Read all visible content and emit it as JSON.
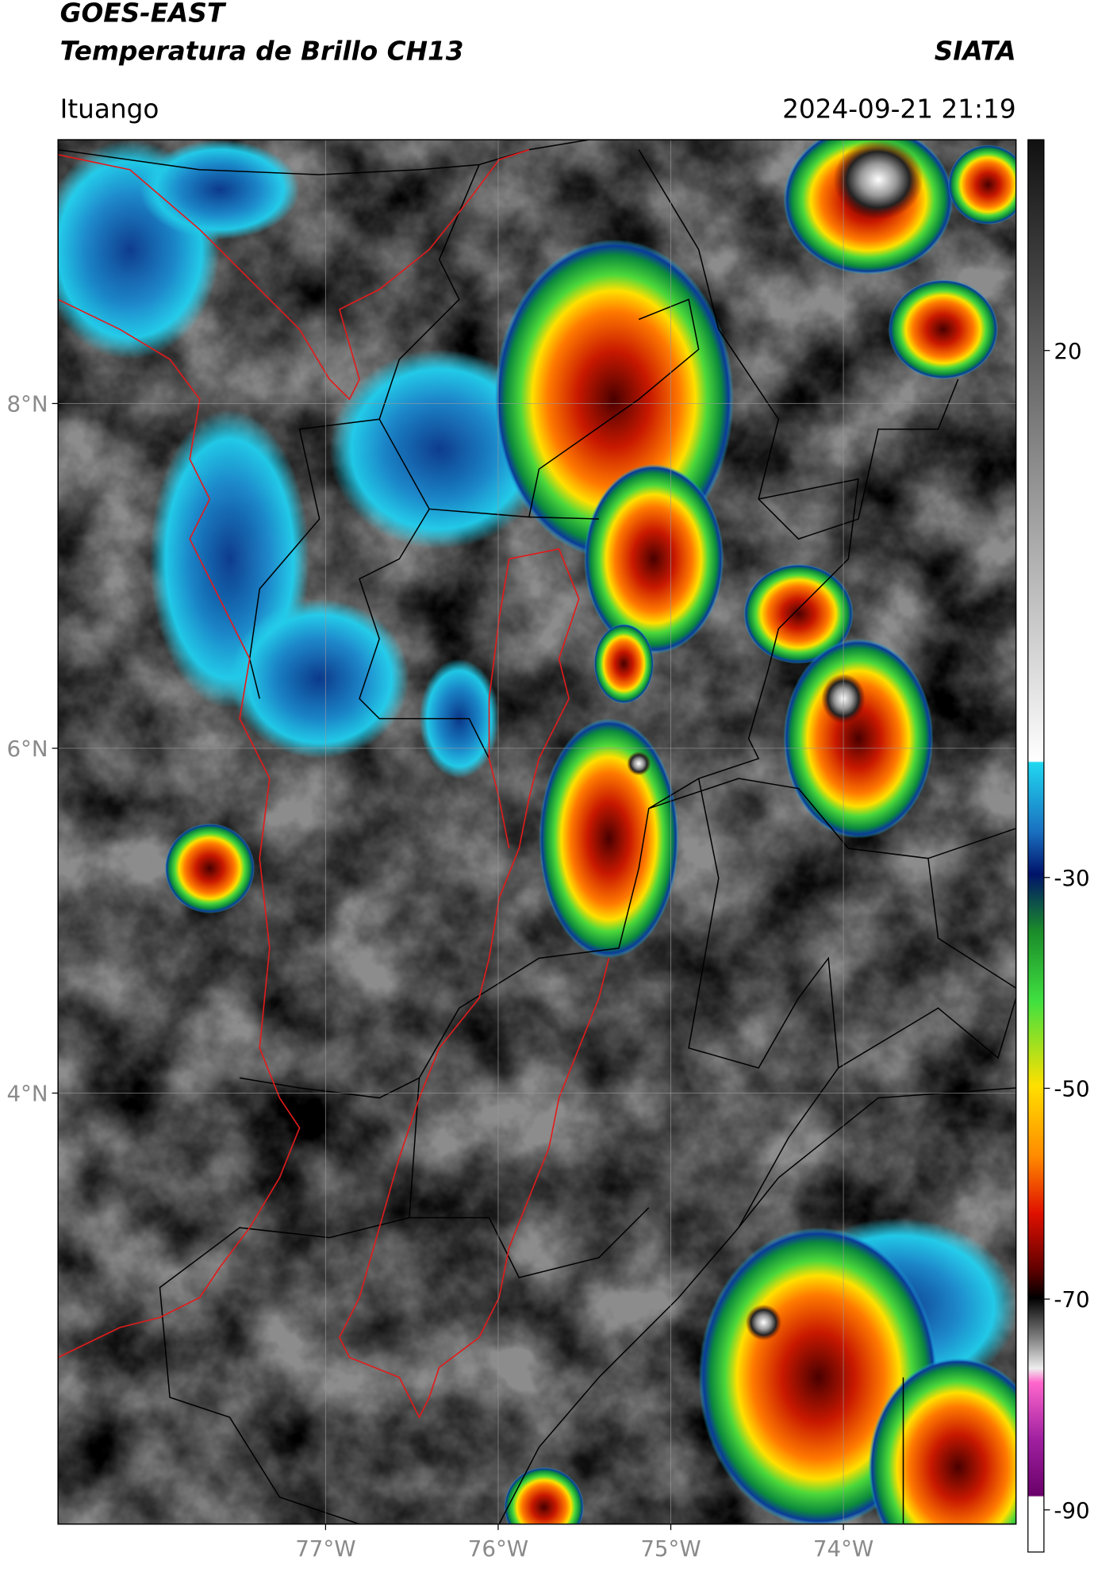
{
  "header": {
    "title": "GOES-EAST",
    "subtitle": "Temperatura de Brillo CH13",
    "source": "SIATA",
    "location": "Ituango",
    "datetime": "2024-09-21 21:19"
  },
  "map": {
    "lon_range": [
      -78.55,
      -73.0
    ],
    "lat_range": [
      1.5,
      9.53
    ],
    "lon_ticks": [
      {
        "value": -77,
        "label": "77°W"
      },
      {
        "value": -76,
        "label": "76°W"
      },
      {
        "value": -75,
        "label": "75°W"
      },
      {
        "value": -74,
        "label": "74°W"
      }
    ],
    "lat_ticks": [
      {
        "value": 8,
        "label": "8°N"
      },
      {
        "value": 6,
        "label": "6°N"
      },
      {
        "value": 4,
        "label": "4°N"
      }
    ],
    "grid": true
  },
  "colorbar": {
    "range": [
      -94,
      40
    ],
    "ticks": [
      20,
      -30,
      -50,
      -70,
      -90
    ]
  }
}
